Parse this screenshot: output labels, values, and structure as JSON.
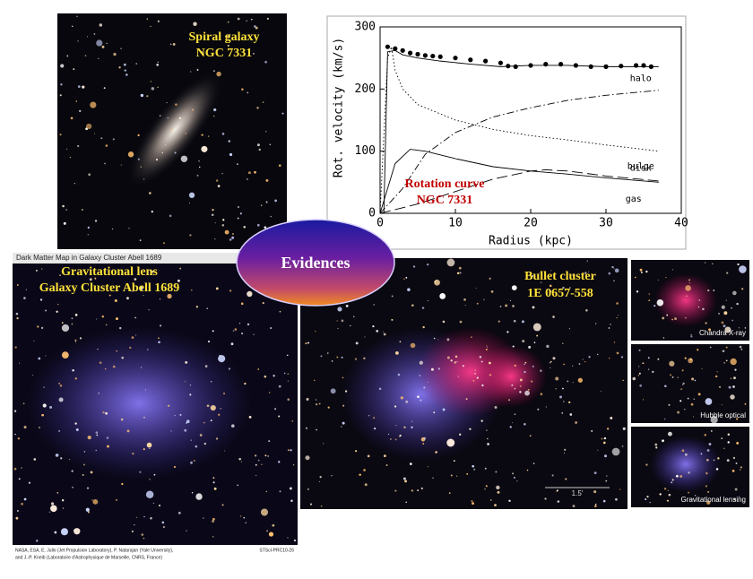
{
  "chart_data": {
    "type": "line",
    "xlabel": "Radius (kpc)",
    "ylabel": "Rot. velocity (km/s)",
    "annotation": [
      "Rotation curve",
      "NGC 7331"
    ],
    "xlim": [
      0,
      40
    ],
    "xticks": [
      0,
      10,
      20,
      30,
      40
    ],
    "ylim": [
      0,
      300
    ],
    "yticks": [
      0,
      100,
      200,
      300
    ],
    "series": [
      {
        "mode": "markers",
        "color": "#000000",
        "x": [
          1,
          2,
          3,
          4,
          5,
          6,
          7,
          8,
          10,
          12,
          14,
          16,
          17,
          18,
          20,
          22,
          24,
          26,
          28,
          30,
          32,
          34,
          35,
          36
        ],
        "values": [
          268,
          265,
          262,
          258,
          256,
          254,
          253,
          252,
          250,
          247,
          245,
          242,
          237,
          236,
          238,
          240,
          240,
          238,
          236,
          236,
          237,
          238,
          238,
          236
        ]
      },
      {
        "mode": "line",
        "dash": "solid",
        "color": "#000000",
        "x": [
          0.5,
          1,
          2,
          3,
          5,
          8,
          12,
          16,
          20,
          25,
          30,
          35,
          37
        ],
        "values": [
          0,
          260,
          262,
          255,
          250,
          245,
          240,
          236,
          238,
          238,
          236,
          236,
          236
        ]
      },
      {
        "name": "halo",
        "mode": "line",
        "dash": "dashdot",
        "color": "#000000",
        "x": [
          0,
          3,
          6,
          10,
          15,
          20,
          25,
          30,
          37
        ],
        "values": [
          0,
          40,
          95,
          130,
          155,
          170,
          182,
          190,
          198
        ]
      },
      {
        "name": "bulge",
        "mode": "line",
        "dash": "dot",
        "color": "#000000",
        "x": [
          0,
          1,
          1.5,
          2,
          3,
          5,
          10,
          15,
          20,
          25,
          30,
          37
        ],
        "values": [
          0,
          250,
          268,
          230,
          200,
          175,
          150,
          135,
          125,
          118,
          110,
          100
        ]
      },
      {
        "name": "gas",
        "mode": "line",
        "dash": "longdash",
        "color": "#000000",
        "x": [
          0,
          5,
          10,
          15,
          20,
          22,
          25,
          30,
          37
        ],
        "values": [
          0,
          15,
          35,
          55,
          68,
          70,
          68,
          60,
          52
        ]
      },
      {
        "name": "disk",
        "mode": "line",
        "dash": "solid",
        "color": "#000000",
        "x": [
          0,
          2,
          4,
          6,
          10,
          15,
          20,
          25,
          30,
          37
        ],
        "values": [
          0,
          80,
          103,
          100,
          88,
          75,
          68,
          63,
          57,
          50
        ]
      }
    ]
  },
  "panels": {
    "spiral": [
      "Spiral galaxy",
      "NGC 7331"
    ],
    "badge": "Evidences",
    "lens": {
      "header": "Dark Matter Map in Galaxy Cluster Abell 1689",
      "title": [
        "Gravitational lens",
        "Galaxy Cluster Abell 1689"
      ],
      "credit": [
        "NASA, ESA, E. Jullo (Jet Propulsion Laboratory), P. Natarajan (Yale University),",
        "and J.-P. Kneib (Laboratoire d'Astrophysique de Marseille, CNRS, France)"
      ],
      "id": "STScI-PRC10-26"
    },
    "bullet": {
      "title": [
        "Bullet cluster",
        "1E 0657-558"
      ],
      "scale": "1.5'",
      "insets": [
        "Chandra X-ray",
        "Hubble optical",
        "Gravitational lensing"
      ]
    }
  }
}
